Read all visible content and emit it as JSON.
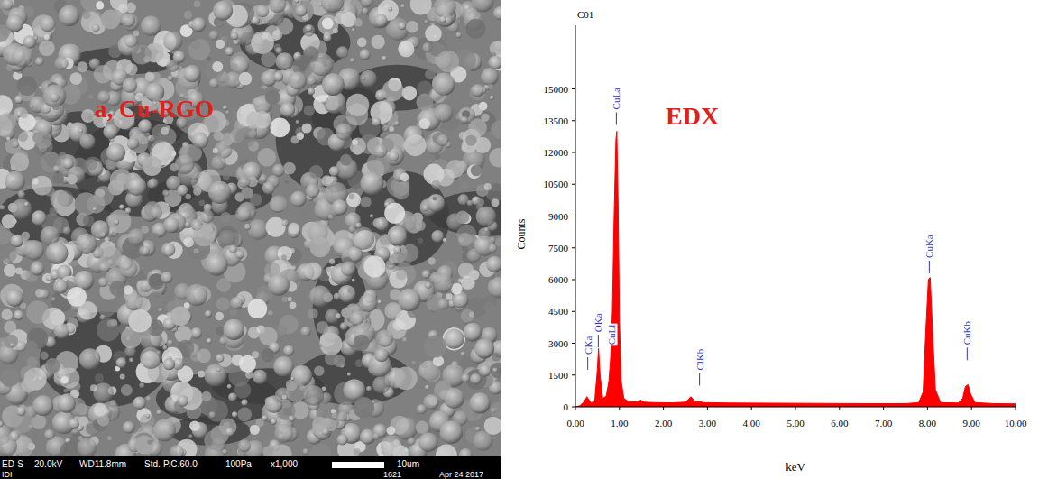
{
  "chart_data": {
    "type": "area",
    "title": "C01",
    "subtitle": "EDX",
    "x_label": "keV",
    "y_label": "Counts",
    "color": "#ff0000",
    "x": [
      0.0,
      0.1,
      0.2,
      0.26,
      0.3,
      0.36,
      0.44,
      0.5,
      0.525,
      0.56,
      0.62,
      0.7,
      0.76,
      0.8,
      0.84,
      0.88,
      0.92,
      0.94,
      0.97,
      1.0,
      1.04,
      1.1,
      1.2,
      1.4,
      1.48,
      1.56,
      1.8,
      2.2,
      2.5,
      2.58,
      2.62,
      2.66,
      2.74,
      2.82,
      2.9,
      3.5,
      4.5,
      5.5,
      6.5,
      7.5,
      7.8,
      7.9,
      7.96,
      8.02,
      8.06,
      8.12,
      8.18,
      8.3,
      8.7,
      8.8,
      8.86,
      8.92,
      8.98,
      9.08,
      9.5,
      10.0
    ],
    "values": [
      0,
      50,
      250,
      480,
      350,
      180,
      300,
      1800,
      2750,
      1500,
      400,
      500,
      1200,
      2300,
      4500,
      9000,
      12600,
      13000,
      9500,
      4000,
      1200,
      400,
      250,
      230,
      320,
      220,
      200,
      190,
      220,
      380,
      480,
      380,
      220,
      260,
      200,
      180,
      170,
      160,
      150,
      150,
      200,
      700,
      3500,
      6000,
      6100,
      3300,
      800,
      200,
      180,
      400,
      950,
      1050,
      600,
      200,
      150,
      140
    ],
    "xlim": [
      0,
      10
    ],
    "xticks": [
      {
        "value": 0,
        "label": "0.00"
      },
      {
        "value": 1,
        "label": "1.00"
      },
      {
        "value": 2,
        "label": "2.00"
      },
      {
        "value": 3,
        "label": "3.00"
      },
      {
        "value": 4,
        "label": "4.00"
      },
      {
        "value": 5,
        "label": "5.00"
      },
      {
        "value": 6,
        "label": "6.00"
      },
      {
        "value": 7,
        "label": "7.00"
      },
      {
        "value": 8,
        "label": "8.00"
      },
      {
        "value": 9,
        "label": "9.00"
      },
      {
        "value": 10,
        "label": "10.00"
      }
    ],
    "ylim": [
      0,
      18000
    ],
    "yticks": [
      0,
      1500,
      3000,
      4500,
      6000,
      7500,
      9000,
      10500,
      12000,
      13500,
      15000
    ],
    "grid": false,
    "annotations": [
      {
        "text": "CKa",
        "x": 0.28,
        "y": 1750
      },
      {
        "text": "OKa",
        "x": 0.52,
        "y": 2800
      },
      {
        "text": "CuLl",
        "x": 0.81,
        "y": 2200
      },
      {
        "text": "CuLa",
        "x": 0.93,
        "y": 13300
      },
      {
        "text": "ClKb",
        "x": 2.82,
        "y": 1000
      },
      {
        "text": "CuKa",
        "x": 8.04,
        "y": 6300
      },
      {
        "text": "CuKb",
        "x": 8.9,
        "y": 2200
      }
    ]
  },
  "sem_image": {
    "label": "a, Cu-RGO",
    "info_bar": [
      "ED-S",
      "20.0kV",
      "WD11.8mm",
      "Std.-P.C.60.0",
      "100Pa",
      "x1,000"
    ],
    "scale_bar": "10um",
    "footer_left": "IDI",
    "footer_right": [
      "1621",
      "Apr 24 2017"
    ]
  }
}
